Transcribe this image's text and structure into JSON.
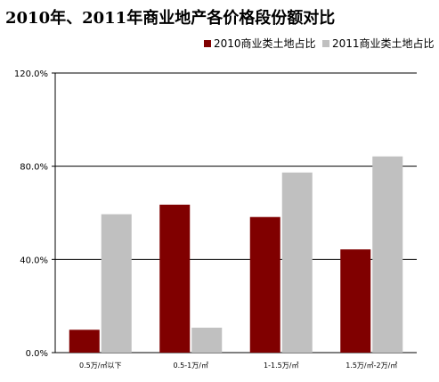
{
  "chart_data": {
    "type": "bar",
    "title": "2010年、2011年商业地产各价格段份额对比",
    "categories": [
      "0.5万/㎡以下",
      "0.5-1万/㎡",
      "1-1.5万/㎡",
      "1.5万/㎡-2万/㎡"
    ],
    "series": [
      {
        "name": "2010商业类土地占比",
        "values": [
          9.8,
          63.5,
          58.2,
          44.3
        ],
        "color": "#800000"
      },
      {
        "name": "2011商业类土地占比",
        "values": [
          59.4,
          10.7,
          77.3,
          84.2
        ],
        "color": "#c0c0c0"
      }
    ],
    "ylim": [
      0,
      120
    ],
    "yticks": [
      "0.0%",
      "40.0%",
      "80.0%",
      "120.0%"
    ],
    "ytick_values": [
      0,
      40,
      80,
      120
    ],
    "grid": true,
    "legend": "top-right",
    "xlabel": "",
    "ylabel": ""
  }
}
